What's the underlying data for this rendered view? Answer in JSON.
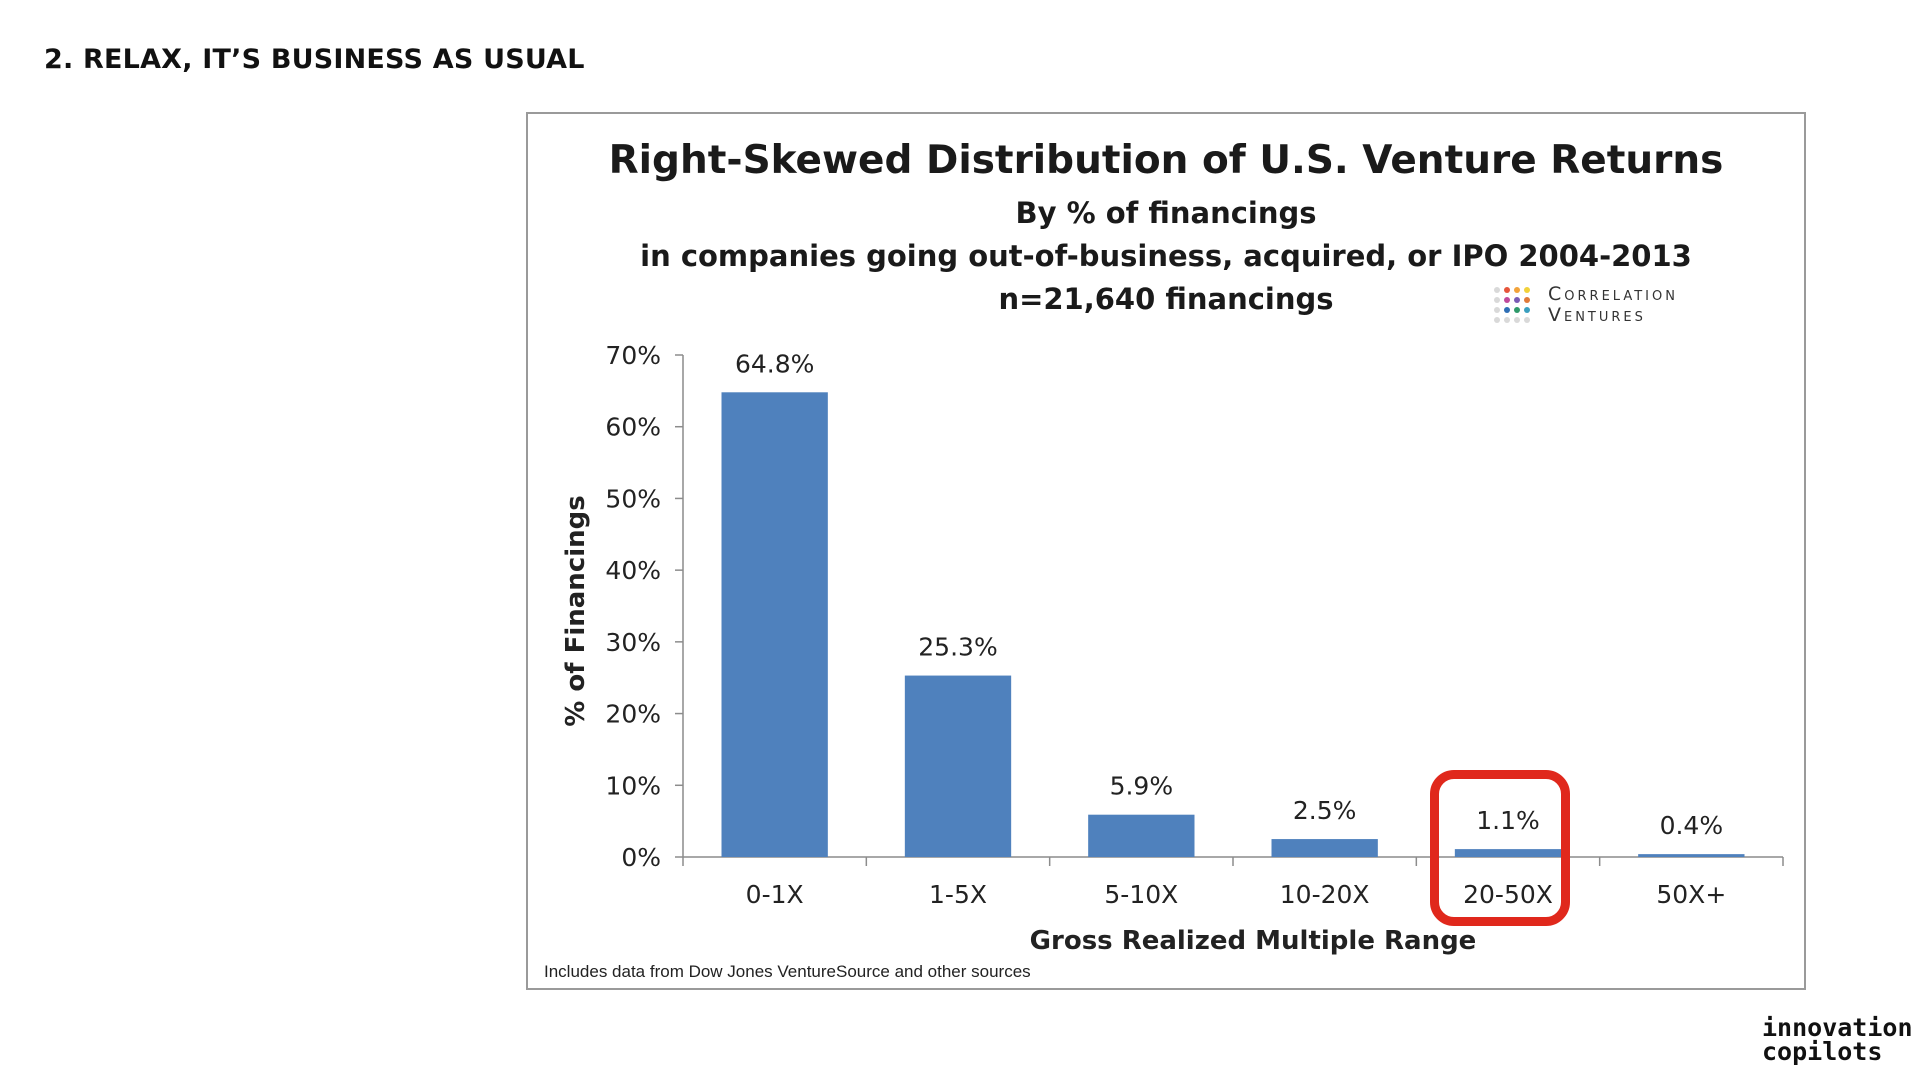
{
  "slide": {
    "title": "2. RELAX, IT’S BUSINESS AS USUAL",
    "brand_line1": "innovation",
    "brand_line2": "copilots"
  },
  "logo": {
    "line1": "Correlation",
    "line2": "Ventures",
    "dot_colors": [
      "#d9d9d9",
      "#e6553a",
      "#f2a33a",
      "#f2d13a",
      "#d9d9d9",
      "#c04a9b",
      "#7a5bb5",
      "#e07a3a",
      "#d9d9d9",
      "#2f6fb5",
      "#2f9a6a",
      "#3a9fbf",
      "#d9d9d9",
      "#d9d9d9",
      "#d9d9d9",
      "#d9d9d9"
    ]
  },
  "chart_data": {
    "type": "bar",
    "title": "Right-Skewed Distribution of U.S. Venture Returns",
    "subtitle_lines": [
      "By % of financings",
      "in companies going out-of-business, acquired, or IPO 2004-2013",
      "n=21,640 financings"
    ],
    "categories": [
      "0-1X",
      "1-5X",
      "5-10X",
      "10-20X",
      "20-50X",
      "50X+"
    ],
    "values": [
      64.8,
      25.3,
      5.9,
      2.5,
      1.1,
      0.4
    ],
    "data_labels": [
      "64.8%",
      "25.3%",
      "5.9%",
      "2.5%",
      "1.1%",
      "0.4%"
    ],
    "xlabel": "Gross Realized Multiple Range",
    "ylabel": "% of Financings",
    "ylim": [
      0,
      70
    ],
    "yticks": [
      0,
      10,
      20,
      30,
      40,
      50,
      60,
      70
    ],
    "ytick_labels": [
      "0%",
      "10%",
      "20%",
      "30%",
      "40%",
      "50%",
      "60%",
      "70%"
    ],
    "bar_color": "#4f81bd",
    "highlighted_category": "20-50X",
    "highlight_color": "#e0281c",
    "source_note": "Includes data from Dow Jones VentureSource and other sources"
  }
}
